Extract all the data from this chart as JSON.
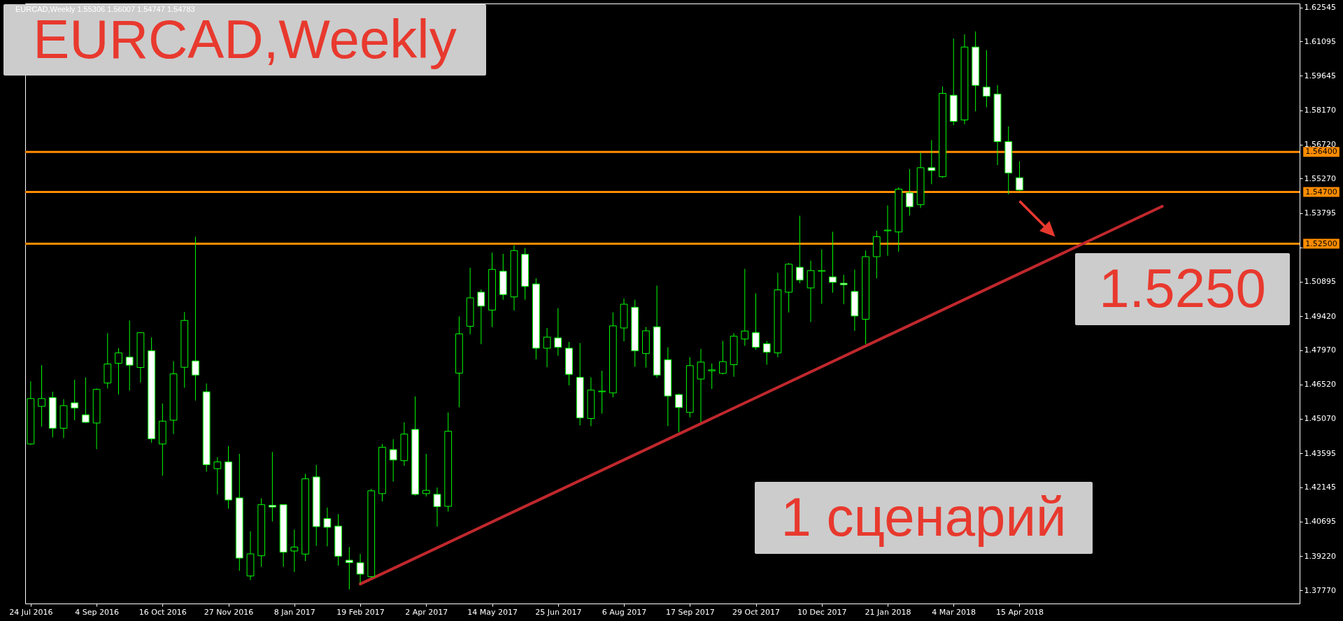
{
  "chart_data": {
    "type": "candlestick",
    "title": "EURCAD,Weekly",
    "subtitle": "EURCAD,Weekly 1.55306 1.56007 1.54747 1.54783",
    "annotations": [
      "1.5250",
      "1 сценарий"
    ],
    "categories": [
      "24 Jul 2016",
      null,
      null,
      null,
      null,
      null,
      "4 Sep 2016",
      null,
      null,
      null,
      null,
      null,
      "16 Oct 2016",
      null,
      null,
      null,
      null,
      null,
      "27 Nov 2016",
      null,
      null,
      null,
      null,
      null,
      "8 Jan 2017",
      null,
      null,
      null,
      null,
      null,
      "19 Feb 2017",
      null,
      null,
      null,
      null,
      null,
      "2 Apr 2017",
      null,
      null,
      null,
      null,
      null,
      "14 May 2017",
      null,
      null,
      null,
      null,
      null,
      "25 Jun 2017",
      null,
      null,
      null,
      null,
      null,
      "6 Aug 2017",
      null,
      null,
      null,
      null,
      null,
      "17 Sep 2017",
      null,
      null,
      null,
      null,
      null,
      "29 Oct 2017",
      null,
      null,
      null,
      null,
      null,
      "10 Dec 2017",
      null,
      null,
      null,
      null,
      null,
      "21 Jan 2018",
      null,
      null,
      null,
      null,
      null,
      "4 Mar 2018",
      null,
      null,
      null,
      null,
      null,
      "15 Apr 2018",
      null,
      null,
      null,
      null,
      null,
      null,
      null,
      null,
      null,
      null,
      null,
      null,
      null,
      null,
      null,
      null,
      null,
      null,
      null,
      null,
      null,
      null,
      null,
      null,
      null
    ],
    "series": [
      {
        "type": "candlestick",
        "color": "#00ff00",
        "ohlc": [
          [
            1.4399,
            1.4665,
            1.4395,
            1.4592
          ],
          [
            1.4559,
            1.4734,
            1.4473,
            1.4592
          ],
          [
            1.4596,
            1.4621,
            1.4427,
            1.4466
          ],
          [
            1.4466,
            1.4589,
            1.4424,
            1.4562
          ],
          [
            1.4574,
            1.4672,
            1.45,
            1.4552
          ],
          [
            1.4523,
            1.4682,
            1.4488,
            1.4491
          ],
          [
            1.4488,
            1.4635,
            1.4377,
            1.4631
          ],
          [
            1.4658,
            1.487,
            1.4635,
            1.4739
          ],
          [
            1.4742,
            1.4806,
            1.4609,
            1.4786
          ],
          [
            1.4768,
            1.4924,
            1.4626,
            1.4734
          ],
          [
            1.4724,
            1.4872,
            1.466,
            1.4872
          ],
          [
            1.4795,
            1.4852,
            1.4404,
            1.4421
          ],
          [
            1.4399,
            1.4571,
            1.4264,
            1.4496
          ],
          [
            1.45,
            1.4751,
            1.4441,
            1.4697
          ],
          [
            1.4725,
            1.496,
            1.4638,
            1.4924
          ],
          [
            1.4752,
            1.528,
            1.4584,
            1.4692
          ],
          [
            1.4621,
            1.4656,
            1.4281,
            1.4311
          ],
          [
            1.4294,
            1.4343,
            1.4185,
            1.4323
          ],
          [
            1.4323,
            1.439,
            1.4124,
            1.4161
          ],
          [
            1.417,
            1.4357,
            1.386,
            1.3914
          ],
          [
            1.3838,
            1.4028,
            1.3821,
            1.3932
          ],
          [
            1.3924,
            1.4168,
            1.3877,
            1.4141
          ],
          [
            1.4138,
            1.4365,
            1.407,
            1.4131
          ],
          [
            1.4141,
            1.4141,
            1.3877,
            1.3939
          ],
          [
            1.3944,
            1.4035,
            1.3855,
            1.3961
          ],
          [
            1.3931,
            1.4272,
            1.3902,
            1.4251
          ],
          [
            1.4259,
            1.431,
            1.3966,
            1.4048
          ],
          [
            1.4082,
            1.4129,
            1.3964,
            1.4045
          ],
          [
            1.405,
            1.4101,
            1.3882,
            1.3922
          ],
          [
            1.3905,
            1.3961,
            1.3781,
            1.3895
          ],
          [
            1.3894,
            1.3932,
            1.3806,
            1.3846
          ],
          [
            1.3835,
            1.4208,
            1.383,
            1.42
          ],
          [
            1.4188,
            1.4399,
            1.4155,
            1.4385
          ],
          [
            1.4375,
            1.4419,
            1.4239,
            1.4331
          ],
          [
            1.4328,
            1.4491,
            1.4306,
            1.4441
          ],
          [
            1.4461,
            1.4601,
            1.418,
            1.4185
          ],
          [
            1.4188,
            1.4357,
            1.4176,
            1.4202
          ],
          [
            1.4185,
            1.4214,
            1.4048,
            1.4133
          ],
          [
            1.4134,
            1.4533,
            1.4112,
            1.4453
          ],
          [
            1.47,
            1.4941,
            1.4555,
            1.4867
          ],
          [
            1.4899,
            1.5148,
            1.4865,
            1.502
          ],
          [
            1.5044,
            1.5056,
            1.4823,
            1.4985
          ],
          [
            1.4968,
            1.5212,
            1.4896,
            1.5141
          ],
          [
            1.5133,
            1.5207,
            1.5012,
            1.5034
          ],
          [
            1.5024,
            1.5244,
            1.4966,
            1.5221
          ],
          [
            1.5205,
            1.5232,
            1.5012,
            1.5069
          ],
          [
            1.5079,
            1.5103,
            1.4759,
            1.4806
          ],
          [
            1.4806,
            1.4892,
            1.4725,
            1.4853
          ],
          [
            1.485,
            1.4976,
            1.4774,
            1.481
          ],
          [
            1.4806,
            1.4833,
            1.4648,
            1.4695
          ],
          [
            1.4682,
            1.4828,
            1.4478,
            1.451
          ],
          [
            1.4507,
            1.4682,
            1.4475,
            1.4628
          ],
          [
            1.4621,
            1.471,
            1.4528,
            1.4624
          ],
          [
            1.4616,
            1.4958,
            1.4597,
            1.4901
          ],
          [
            1.4892,
            1.5017,
            1.4835,
            1.4993
          ],
          [
            1.498,
            1.5012,
            1.4727,
            1.4795
          ],
          [
            1.4783,
            1.4896,
            1.4724,
            1.488
          ],
          [
            1.4897,
            1.5072,
            1.468,
            1.4692
          ],
          [
            1.4757,
            1.481,
            1.4475,
            1.4603
          ],
          [
            1.4609,
            1.4613,
            1.4449,
            1.4554
          ],
          [
            1.4533,
            1.4768,
            1.4512,
            1.4732
          ],
          [
            1.4675,
            1.4803,
            1.4491,
            1.4747
          ],
          [
            1.471,
            1.4741,
            1.4633,
            1.4714
          ],
          [
            1.4699,
            1.4837,
            1.4695,
            1.4749
          ],
          [
            1.4736,
            1.487,
            1.4685,
            1.4857
          ],
          [
            1.4845,
            1.5143,
            1.4816,
            1.4879
          ],
          [
            1.4872,
            1.5039,
            1.48,
            1.481
          ],
          [
            1.4825,
            1.4837,
            1.4736,
            1.4789
          ],
          [
            1.4786,
            1.5126,
            1.4768,
            1.5054
          ],
          [
            1.5044,
            1.5168,
            1.4958,
            1.5163
          ],
          [
            1.515,
            1.5369,
            1.5082,
            1.5096
          ],
          [
            1.5062,
            1.5178,
            1.4917,
            1.5136
          ],
          [
            1.5133,
            1.5226,
            1.4995,
            1.5136
          ],
          [
            1.5109,
            1.5301,
            1.5042,
            1.5086
          ],
          [
            1.5082,
            1.5118,
            1.4993,
            1.5076
          ],
          [
            1.5047,
            1.514,
            1.488,
            1.4943
          ],
          [
            1.4929,
            1.5221,
            1.4823,
            1.5195
          ],
          [
            1.5195,
            1.5305,
            1.5103,
            1.528
          ],
          [
            1.5305,
            1.5413,
            1.5199,
            1.5308
          ],
          [
            1.53,
            1.549,
            1.5216,
            1.5482
          ],
          [
            1.5466,
            1.5567,
            1.537,
            1.5407
          ],
          [
            1.5416,
            1.5637,
            1.5402,
            1.5573
          ],
          [
            1.5573,
            1.569,
            1.5503,
            1.5561
          ],
          [
            1.5535,
            1.5918,
            1.553,
            1.5889
          ],
          [
            1.5881,
            1.6122,
            1.5754,
            1.577
          ],
          [
            1.5776,
            1.614,
            1.5758,
            1.6086
          ],
          [
            1.6086,
            1.6152,
            1.5813,
            1.5923
          ],
          [
            1.5916,
            1.6073,
            1.583,
            1.5877
          ],
          [
            1.5886,
            1.5924,
            1.5584,
            1.5684
          ],
          [
            1.5684,
            1.5749,
            1.546,
            1.5551
          ],
          [
            1.55306,
            1.56007,
            1.54747,
            1.54783
          ],
          null,
          null,
          null,
          null,
          null,
          null,
          null,
          null,
          null,
          null,
          null,
          null,
          null,
          null,
          null,
          null,
          null,
          null,
          null,
          null,
          null,
          null,
          null,
          null,
          null
        ]
      },
      {
        "type": "line",
        "color": "#c0282d",
        "values": [
          null,
          null,
          null,
          null,
          null,
          null,
          null,
          null,
          null,
          null,
          null,
          null,
          null,
          null,
          null,
          null,
          null,
          null,
          null,
          null,
          null,
          null,
          null,
          null,
          null,
          null,
          null,
          null,
          null,
          null,
          1.3804,
          null,
          null,
          null,
          null,
          null,
          null,
          null,
          null,
          null,
          null,
          null,
          null,
          null,
          null,
          null,
          null,
          null,
          null,
          null,
          null,
          null,
          null,
          null,
          null,
          null,
          null,
          null,
          null,
          null,
          null,
          null,
          null,
          null,
          null,
          null,
          null,
          null,
          null,
          null,
          null,
          null,
          null,
          null,
          null,
          null,
          null,
          null,
          null,
          null,
          null,
          null,
          null,
          null,
          null,
          null,
          null,
          null,
          null,
          null,
          null,
          null,
          null,
          null,
          null,
          null,
          null,
          null,
          null,
          null,
          null,
          null,
          null,
          1.5409,
          null,
          null,
          null,
          null,
          null,
          null,
          null,
          null,
          null,
          null,
          null,
          null
        ]
      }
    ],
    "ylim": [
      1.3721,
      1.6271
    ],
    "yticks": [
      {
        "value": 1.3777,
        "label": "1.37770"
      },
      {
        "value": 1.3922,
        "label": "1.39220"
      },
      {
        "value": 1.40695,
        "label": "1.40695"
      },
      {
        "value": 1.42145,
        "label": "1.42145"
      },
      {
        "value": 1.43595,
        "label": "1.43595"
      },
      {
        "value": 1.4507,
        "label": "1.45070"
      },
      {
        "value": 1.4652,
        "label": "1.46520"
      },
      {
        "value": 1.4797,
        "label": "1.47970"
      },
      {
        "value": 1.4942,
        "label": "1.49420"
      },
      {
        "value": 1.50895,
        "label": "1.50895"
      },
      {
        "value": 1.52345,
        "label": null
      },
      {
        "value": 1.53795,
        "label": "1.53795"
      },
      {
        "value": 1.5527,
        "label": "1.55270"
      },
      {
        "value": 1.5672,
        "label": "1.56720"
      },
      {
        "value": 1.5817,
        "label": "1.58170"
      },
      {
        "value": 1.59645,
        "label": "1.59645"
      },
      {
        "value": 1.61095,
        "label": "1.61095"
      },
      {
        "value": 1.62545,
        "label": "1.62545"
      }
    ],
    "ref_lines": [
      {
        "axis": "y",
        "value": 1.564,
        "label": "1.56400",
        "color": "#ff8c00"
      },
      {
        "axis": "y",
        "value": 1.547,
        "label": "1.54700",
        "color": "#ff8c00"
      },
      {
        "axis": "y",
        "value": 1.525,
        "label": "1.52500",
        "color": "#ff8c00"
      }
    ],
    "grid": false
  }
}
